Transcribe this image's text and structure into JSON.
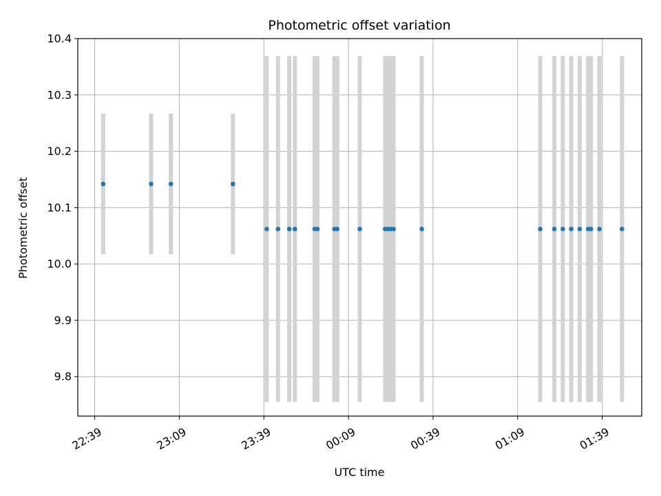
{
  "chart_data": {
    "type": "scatter",
    "title": "Photometric offset variation",
    "xlabel": "UTC time",
    "ylabel": "Photometric offset",
    "grid": true,
    "xlim": [
      "22:33",
      "01:53"
    ],
    "ylim": [
      9.73,
      10.4
    ],
    "x_ticks": [
      "22:39",
      "23:09",
      "23:39",
      "00:09",
      "00:39",
      "01:09",
      "01:39"
    ],
    "y_ticks": [
      9.8,
      9.9,
      10.0,
      10.1,
      10.2,
      10.3,
      10.4
    ],
    "y_tick_labels": [
      "9.8",
      "9.9",
      "10.0",
      "10.1",
      "10.2",
      "10.3",
      "10.4"
    ],
    "marker_color": "#1f77b4",
    "errorbar_color": "#d3d3d3",
    "points": [
      {
        "t": "22:42",
        "y": 10.142,
        "err": 0.125
      },
      {
        "t": "22:59",
        "y": 10.142,
        "err": 0.125
      },
      {
        "t": "23:06",
        "y": 10.142,
        "err": 0.125
      },
      {
        "t": "23:28",
        "y": 10.142,
        "err": 0.125
      },
      {
        "t": "23:40",
        "y": 10.062,
        "err": 0.307
      },
      {
        "t": "23:44",
        "y": 10.062,
        "err": 0.307
      },
      {
        "t": "23:48",
        "y": 10.062,
        "err": 0.307
      },
      {
        "t": "23:50",
        "y": 10.062,
        "err": 0.307
      },
      {
        "t": "23:57",
        "y": 10.062,
        "err": 0.307
      },
      {
        "t": "23:58",
        "y": 10.062,
        "err": 0.307
      },
      {
        "t": "00:04",
        "y": 10.062,
        "err": 0.307
      },
      {
        "t": "00:05",
        "y": 10.062,
        "err": 0.307
      },
      {
        "t": "00:13",
        "y": 10.062,
        "err": 0.307
      },
      {
        "t": "00:22",
        "y": 10.062,
        "err": 0.307
      },
      {
        "t": "00:23",
        "y": 10.062,
        "err": 0.307
      },
      {
        "t": "00:24",
        "y": 10.062,
        "err": 0.307
      },
      {
        "t": "00:25",
        "y": 10.062,
        "err": 0.307
      },
      {
        "t": "00:35",
        "y": 10.062,
        "err": 0.307
      },
      {
        "t": "01:17",
        "y": 10.062,
        "err": 0.307
      },
      {
        "t": "01:22",
        "y": 10.062,
        "err": 0.307
      },
      {
        "t": "01:25",
        "y": 10.062,
        "err": 0.307
      },
      {
        "t": "01:28",
        "y": 10.062,
        "err": 0.307
      },
      {
        "t": "01:31",
        "y": 10.062,
        "err": 0.307
      },
      {
        "t": "01:34",
        "y": 10.062,
        "err": 0.307
      },
      {
        "t": "01:35",
        "y": 10.062,
        "err": 0.307
      },
      {
        "t": "01:38",
        "y": 10.062,
        "err": 0.307
      },
      {
        "t": "01:46",
        "y": 10.062,
        "err": 0.307
      }
    ]
  }
}
